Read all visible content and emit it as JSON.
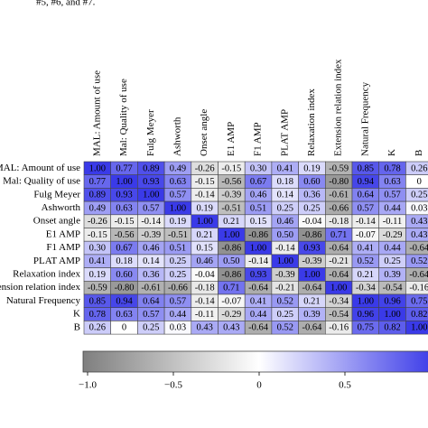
{
  "caption": "#5, #6, and #7.",
  "chart_data": {
    "type": "heatmap",
    "labels": [
      "MAL: Amount of use",
      "Mal: Quality of use",
      "Fulg Meyer",
      "Ashworth",
      "Onset angle",
      "E1 AMP",
      "F1 AMP",
      "PLAT AMP",
      "Relaxation index",
      "Extension relation index",
      "Natural Frequency",
      "K",
      "B"
    ],
    "values": [
      [
        1.0,
        0.77,
        0.89,
        0.49,
        -0.26,
        -0.15,
        0.3,
        0.41,
        0.19,
        -0.59,
        0.85,
        0.78,
        0.26
      ],
      [
        0.77,
        1.0,
        0.93,
        0.63,
        -0.15,
        -0.56,
        0.67,
        0.18,
        0.6,
        -0.8,
        0.94,
        0.63,
        0
      ],
      [
        0.89,
        0.93,
        1.0,
        0.57,
        -0.14,
        -0.39,
        0.46,
        0.14,
        0.36,
        -0.61,
        0.64,
        0.57,
        0.25
      ],
      [
        0.49,
        0.63,
        0.57,
        1.0,
        0.19,
        -0.51,
        0.51,
        0.25,
        0.25,
        -0.66,
        0.57,
        0.44,
        0.03
      ],
      [
        -0.26,
        -0.15,
        -0.14,
        0.19,
        1.0,
        0.21,
        0.15,
        0.46,
        -0.04,
        -0.18,
        -0.14,
        -0.11,
        0.43
      ],
      [
        -0.15,
        -0.56,
        -0.39,
        -0.51,
        0.21,
        1.0,
        -0.86,
        0.5,
        -0.86,
        0.71,
        -0.07,
        -0.29,
        0.43
      ],
      [
        0.3,
        0.67,
        0.46,
        0.51,
        0.15,
        -0.86,
        1.0,
        -0.14,
        0.93,
        -0.64,
        0.41,
        0.44,
        -0.64
      ],
      [
        0.41,
        0.18,
        0.14,
        0.25,
        0.46,
        0.5,
        -0.14,
        1.0,
        -0.39,
        -0.21,
        0.52,
        0.25,
        0.52
      ],
      [
        0.19,
        0.6,
        0.36,
        0.25,
        -0.04,
        -0.86,
        0.93,
        -0.39,
        1.0,
        -0.64,
        0.21,
        0.39,
        -0.64
      ],
      [
        -0.59,
        -0.8,
        -0.61,
        -0.66,
        -0.18,
        0.71,
        -0.64,
        -0.21,
        -0.64,
        1.0,
        -0.34,
        -0.54,
        -0.16
      ],
      [
        0.85,
        0.94,
        0.64,
        0.57,
        -0.14,
        -0.07,
        0.41,
        0.52,
        0.21,
        -0.34,
        1.0,
        0.96,
        0.75
      ],
      [
        0.78,
        0.63,
        0.57,
        0.44,
        -0.11,
        -0.29,
        0.44,
        0.25,
        0.39,
        -0.54,
        0.96,
        1.0,
        0.82
      ],
      [
        0.26,
        0,
        0.25,
        0.03,
        0.43,
        0.43,
        -0.64,
        0.52,
        -0.64,
        -0.16,
        0.75,
        0.82,
        1.0
      ]
    ],
    "value_labels": [
      [
        "1.00",
        "0.77",
        "0.89",
        "0.49",
        "-0.26",
        "-0.15",
        "0.30",
        "0.41",
        "0.19",
        "-0.59",
        "0.85",
        "0.78",
        "0.26"
      ],
      [
        "0.77",
        "1.00",
        "0.93",
        "0.63",
        "-0.15",
        "-0.56",
        "0.67",
        "0.18",
        "0.60",
        "-0.80",
        "0.94",
        "0.63",
        "0"
      ],
      [
        "0.89",
        "0.93",
        "1.00",
        "0.57",
        "-0.14",
        "-0.39",
        "0.46",
        "0.14",
        "0.36",
        "-0.61",
        "0.64",
        "0.57",
        "0.25"
      ],
      [
        "0.49",
        "0.63",
        "0.57",
        "1.00",
        "0.19",
        "-0.51",
        "0.51",
        "0.25",
        "0.25",
        "-0.66",
        "0.57",
        "0.44",
        "0.03"
      ],
      [
        "-0.26",
        "-0.15",
        "-0.14",
        "0.19",
        "1.00",
        "0.21",
        "0.15",
        "0.46",
        "-0.04",
        "-0.18",
        "-0.14",
        "-0.11",
        "0.43"
      ],
      [
        "-0.15",
        "-0.56",
        "-0.39",
        "-0.51",
        "0.21",
        "1.00",
        "-0.86",
        "0.50",
        "-0.86",
        "0.71",
        "-0.07",
        "-0.29",
        "0.43"
      ],
      [
        "0.30",
        "0.67",
        "0.46",
        "0.51",
        "0.15",
        "-0.86",
        "1.00",
        "-0.14",
        "0.93",
        "-0.64",
        "0.41",
        "0.44",
        "-0.64"
      ],
      [
        "0.41",
        "0.18",
        "0.14",
        "0.25",
        "0.46",
        "0.50",
        "-0.14",
        "1.00",
        "-0.39",
        "-0.21",
        "0.52",
        "0.25",
        "0.52"
      ],
      [
        "0.19",
        "0.60",
        "0.36",
        "0.25",
        "-0.04",
        "-0.86",
        "0.93",
        "-0.39",
        "1.00",
        "-0.64",
        "0.21",
        "0.39",
        "-0.64"
      ],
      [
        "-0.59",
        "-0.80",
        "-0.61",
        "-0.66",
        "-0.18",
        "0.71",
        "-0.64",
        "-0.21",
        "-0.64",
        "1.00",
        "-0.34",
        "-0.54",
        "-0.16"
      ],
      [
        "0.85",
        "0.94",
        "0.64",
        "0.57",
        "-0.14",
        "-0.07",
        "0.41",
        "0.52",
        "0.21",
        "-0.34",
        "1.00",
        "0.96",
        "0.75"
      ],
      [
        "0.78",
        "0.63",
        "0.57",
        "0.44",
        "-0.11",
        "-0.29",
        "0.44",
        "0.25",
        "0.39",
        "-0.54",
        "0.96",
        "1.00",
        "0.82"
      ],
      [
        "0.26",
        "0",
        "0.25",
        "0.03",
        "0.43",
        "0.43",
        "-0.64",
        "0.52",
        "-0.64",
        "-0.16",
        "0.75",
        "0.82",
        "1.00"
      ]
    ],
    "colors": {
      "negative": "#7f7f7f",
      "zero": "#ffffff",
      "positive": "#3a3ae8"
    },
    "clim": [
      -1,
      1
    ],
    "cticks": [
      {
        "value": -1,
        "label": "−1.0"
      },
      {
        "value": -0.5,
        "label": "−0.5"
      },
      0,
      0.5
    ]
  }
}
